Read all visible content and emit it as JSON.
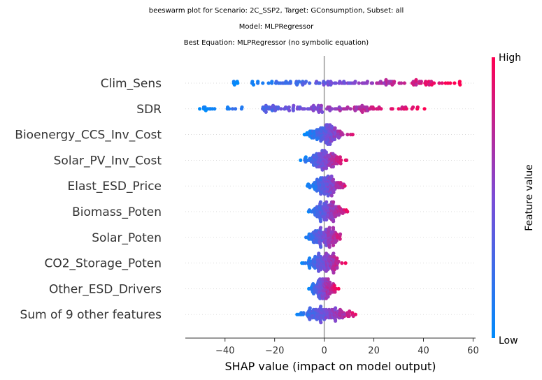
{
  "titles": {
    "line1": "beeswarm plot for Scenario: 2C_SSP2, Target: GConsumption, Subset: all",
    "line2": "Model: MLPRegressor",
    "line3": "Best Equation: MLPRegressor (no symbolic equation)"
  },
  "chart_data": {
    "type": "scatter",
    "subtype": "shap-beeswarm",
    "xlabel": "SHAP value (impact on model output)",
    "xlim": [
      -56,
      61
    ],
    "xticks": [
      -40,
      -20,
      0,
      20,
      40,
      60
    ],
    "xtick_labels": [
      "−40",
      "−20",
      "0",
      "20",
      "40",
      "60"
    ],
    "colorbar": {
      "label": "Feature value",
      "high": "High",
      "low": "Low",
      "low_color": "#008bfb",
      "high_color": "#ff0052",
      "mid_color": "#7b4cd6"
    },
    "features": [
      {
        "name": "Clim_Sens",
        "min": -37,
        "max": 55,
        "spread": "uniform-bimodal"
      },
      {
        "name": "SDR",
        "min": -51,
        "max": 41,
        "spread": "wide"
      },
      {
        "name": "Bioenergy_CCS_Inv_Cost",
        "min": -8,
        "max": 14,
        "spread": "centered"
      },
      {
        "name": "Solar_PV_Inv_Cost",
        "min": -10,
        "max": 10,
        "spread": "centered"
      },
      {
        "name": "Elast_ESD_Price",
        "min": -7,
        "max": 12,
        "spread": "centered"
      },
      {
        "name": "Biomass_Poten",
        "min": -8,
        "max": 11,
        "spread": "centered"
      },
      {
        "name": "Solar_Poten",
        "min": -9,
        "max": 10,
        "spread": "centered"
      },
      {
        "name": "CO2_Storage_Poten",
        "min": -9,
        "max": 10,
        "spread": "centered"
      },
      {
        "name": "Other_ESD_Drivers",
        "min": -7,
        "max": 6,
        "spread": "centered"
      },
      {
        "name": "Sum of 9 other features",
        "min": -14,
        "max": 17,
        "spread": "centered"
      }
    ]
  }
}
